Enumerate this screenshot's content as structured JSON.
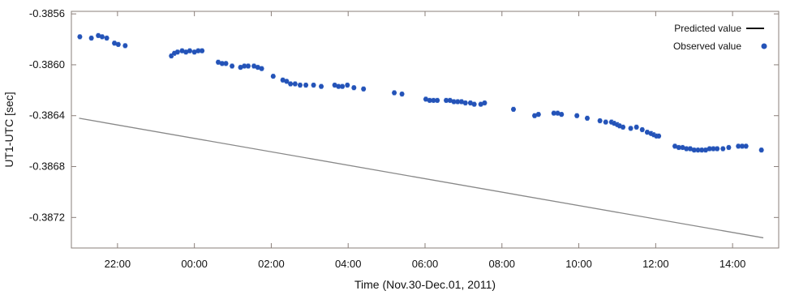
{
  "chart_data": {
    "type": "scatter",
    "title": "",
    "xlabel": "Time (Nov.30-Dec.01, 2011)",
    "ylabel": "UT1-UTC [sec]",
    "xlim": [
      20.8,
      39.2
    ],
    "ylim": [
      -0.38744,
      -0.38558
    ],
    "x_ticks": [
      {
        "value": 22,
        "label": "22:00"
      },
      {
        "value": 24,
        "label": "00:00"
      },
      {
        "value": 26,
        "label": "02:00"
      },
      {
        "value": 28,
        "label": "04:00"
      },
      {
        "value": 30,
        "label": "06:00"
      },
      {
        "value": 32,
        "label": "08:00"
      },
      {
        "value": 34,
        "label": "10:00"
      },
      {
        "value": 36,
        "label": "12:00"
      },
      {
        "value": 38,
        "label": "14:00"
      }
    ],
    "y_ticks": [
      {
        "value": -0.3856,
        "label": "-0.3856"
      },
      {
        "value": -0.386,
        "label": "-0.3860"
      },
      {
        "value": -0.3864,
        "label": "-0.3864"
      },
      {
        "value": -0.3868,
        "label": "-0.3868"
      },
      {
        "value": -0.3872,
        "label": "-0.3872"
      }
    ],
    "grid": false,
    "legend_position": "top-right",
    "series": [
      {
        "name": "Predicted value",
        "kind": "line",
        "color": "#888888",
        "x": [
          21.0,
          38.8
        ],
        "y": [
          -0.38642,
          -0.38736
        ]
      },
      {
        "name": "Observed value",
        "kind": "scatter",
        "color": "#2453b8",
        "error": 1.7e-05,
        "x": [
          21.02,
          21.32,
          21.5,
          21.6,
          21.72,
          21.92,
          22.02,
          22.2,
          23.4,
          23.48,
          23.56,
          23.68,
          23.78,
          23.88,
          24.0,
          24.1,
          24.2,
          24.62,
          24.72,
          24.82,
          24.98,
          25.2,
          25.3,
          25.4,
          25.55,
          25.65,
          25.75,
          26.05,
          26.3,
          26.4,
          26.5,
          26.62,
          26.75,
          26.9,
          27.1,
          27.3,
          27.65,
          27.75,
          27.85,
          27.98,
          28.15,
          28.4,
          29.2,
          29.4,
          30.02,
          30.12,
          30.22,
          30.32,
          30.55,
          30.65,
          30.75,
          30.85,
          30.95,
          31.05,
          31.18,
          31.28,
          31.45,
          31.55,
          32.3,
          32.85,
          32.95,
          33.35,
          33.45,
          33.55,
          33.95,
          34.22,
          34.55,
          34.7,
          34.85,
          34.92,
          35.0,
          35.06,
          35.15,
          35.35,
          35.5,
          35.65,
          35.78,
          35.88,
          35.95,
          36.02,
          36.08,
          36.5,
          36.6,
          36.7,
          36.8,
          36.9,
          37.0,
          37.1,
          37.2,
          37.3,
          37.4,
          37.5,
          37.6,
          37.75,
          37.9,
          38.15,
          38.25,
          38.35,
          38.75
        ],
        "y": [
          -0.38578,
          -0.38579,
          -0.38577,
          -0.38578,
          -0.38579,
          -0.38583,
          -0.38584,
          -0.38585,
          -0.38593,
          -0.38591,
          -0.3859,
          -0.38589,
          -0.3859,
          -0.38589,
          -0.3859,
          -0.38589,
          -0.38589,
          -0.38598,
          -0.38599,
          -0.38599,
          -0.38601,
          -0.38602,
          -0.38601,
          -0.38601,
          -0.38601,
          -0.38602,
          -0.38603,
          -0.38609,
          -0.38612,
          -0.38613,
          -0.38615,
          -0.38615,
          -0.38616,
          -0.38616,
          -0.38616,
          -0.38617,
          -0.38616,
          -0.38617,
          -0.38617,
          -0.38616,
          -0.38618,
          -0.38619,
          -0.38622,
          -0.38623,
          -0.38627,
          -0.38628,
          -0.38628,
          -0.38628,
          -0.38628,
          -0.38628,
          -0.38629,
          -0.38629,
          -0.38629,
          -0.3863,
          -0.3863,
          -0.38631,
          -0.38631,
          -0.3863,
          -0.38635,
          -0.3864,
          -0.38639,
          -0.38638,
          -0.38638,
          -0.38639,
          -0.3864,
          -0.38642,
          -0.38644,
          -0.38645,
          -0.38645,
          -0.38646,
          -0.38647,
          -0.38648,
          -0.38649,
          -0.3865,
          -0.38649,
          -0.38651,
          -0.38653,
          -0.38654,
          -0.38655,
          -0.38656,
          -0.38656,
          -0.38664,
          -0.38665,
          -0.38665,
          -0.38666,
          -0.38666,
          -0.38667,
          -0.38667,
          -0.38667,
          -0.38667,
          -0.38666,
          -0.38666,
          -0.38666,
          -0.38666,
          -0.38665,
          -0.38664,
          -0.38664,
          -0.38664,
          -0.38667
        ]
      }
    ]
  }
}
